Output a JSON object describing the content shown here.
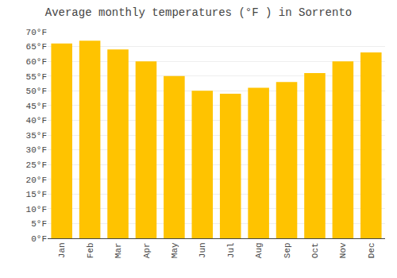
{
  "chart_data": {
    "type": "bar",
    "title": "Average monthly temperatures (°F ) in Sorrento",
    "categories": [
      "Jan",
      "Feb",
      "Mar",
      "Apr",
      "May",
      "Jun",
      "Jul",
      "Aug",
      "Sep",
      "Oct",
      "Nov",
      "Dec"
    ],
    "values": [
      66,
      67,
      64,
      60,
      55,
      50,
      49,
      51,
      53,
      56,
      60,
      63
    ],
    "color": "#FFC300",
    "ylim": [
      0,
      70
    ],
    "yticks": [
      {
        "value": 0,
        "label": "0°F"
      },
      {
        "value": 5,
        "label": "5°F"
      },
      {
        "value": 10,
        "label": "10°F"
      },
      {
        "value": 15,
        "label": "15°F"
      },
      {
        "value": 20,
        "label": "20°F"
      },
      {
        "value": 25,
        "label": "25°F"
      },
      {
        "value": 30,
        "label": "30°F"
      },
      {
        "value": 35,
        "label": "35°F"
      },
      {
        "value": 40,
        "label": "40°F"
      },
      {
        "value": 45,
        "label": "45°F"
      },
      {
        "value": 50,
        "label": "50°F"
      },
      {
        "value": 55,
        "label": "55°F"
      },
      {
        "value": 60,
        "label": "60°F"
      },
      {
        "value": 65,
        "label": "65°F"
      },
      {
        "value": 70,
        "label": "70°F"
      }
    ],
    "grid": true
  }
}
